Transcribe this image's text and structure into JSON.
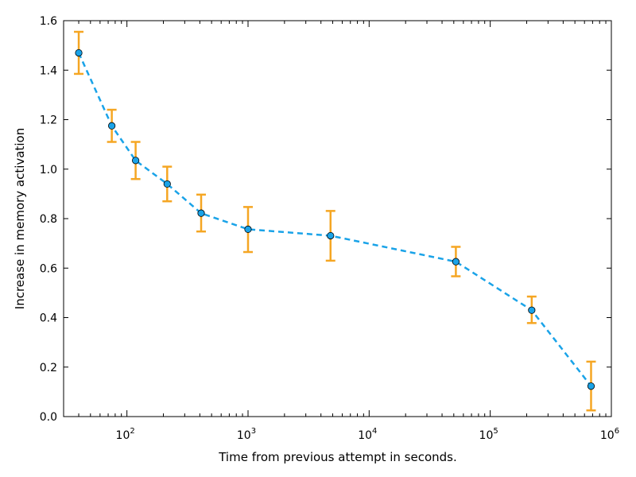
{
  "chart_data": {
    "type": "scatter",
    "title": "",
    "xlabel": "Time from previous attempt in seconds.",
    "ylabel": "Increase in memory activation",
    "x_scale": "log",
    "xlim": [
      30,
      1000000
    ],
    "ylim": [
      0,
      1.6
    ],
    "x_ticks": [
      {
        "value": 100,
        "base": "10",
        "exp": "2"
      },
      {
        "value": 1000,
        "base": "10",
        "exp": "3"
      },
      {
        "value": 10000,
        "base": "10",
        "exp": "4"
      },
      {
        "value": 100000,
        "base": "10",
        "exp": "5"
      },
      {
        "value": 1000000,
        "base": "10",
        "exp": "6"
      }
    ],
    "y_ticks": [
      "0.0",
      "0.2",
      "0.4",
      "0.6",
      "0.8",
      "1.0",
      "1.2",
      "1.4",
      "1.6"
    ],
    "grid": false,
    "legend": "none",
    "line_style": "dashed",
    "colors": {
      "line": "#1aa3e8",
      "marker": "#1aa3e8",
      "marker_edge": "#000000",
      "error_bar": "#f5a623",
      "axis": "#000000"
    },
    "x": [
      40,
      75,
      118,
      215,
      410,
      1000,
      4800,
      52000,
      220000,
      680000
    ],
    "y": [
      1.47,
      1.175,
      1.035,
      0.94,
      0.822,
      0.757,
      0.731,
      0.626,
      0.43,
      0.123
    ],
    "y_lower": [
      1.385,
      1.11,
      0.96,
      0.87,
      0.748,
      0.665,
      0.63,
      0.567,
      0.378,
      0.025
    ],
    "y_upper": [
      1.555,
      1.24,
      1.11,
      1.01,
      0.897,
      0.847,
      0.831,
      0.686,
      0.485,
      0.222
    ]
  }
}
